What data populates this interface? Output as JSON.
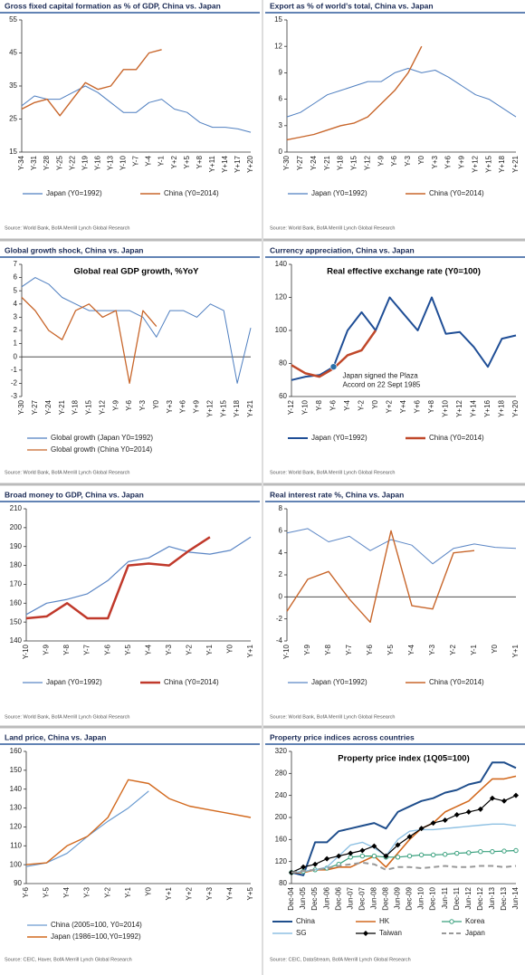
{
  "chart_data": [
    {
      "type": "line",
      "title": "Gross fixed capital formation as % of GDP, China vs. Japan",
      "categories": [
        "Y-34",
        "Y-31",
        "Y-28",
        "Y-25",
        "Y-22",
        "Y-19",
        "Y-16",
        "Y-13",
        "Y-10",
        "Y-7",
        "Y-4",
        "Y-1",
        "Y+2",
        "Y+5",
        "Y+8",
        "Y+11",
        "Y+14",
        "Y+17",
        "Y+20"
      ],
      "series": [
        {
          "name": "Japan (Y0=1992)",
          "color": "#4f7fc0",
          "width": 1,
          "values": [
            29,
            32,
            31,
            31,
            33,
            35,
            33,
            30,
            27,
            27,
            30,
            31,
            28,
            27,
            24,
            22.5,
            22.5,
            22,
            21
          ]
        },
        {
          "name": "China (Y0=2014)",
          "color": "#c8662b",
          "width": 1.4,
          "values": [
            28,
            30,
            31,
            26,
            31,
            36,
            34,
            35,
            40,
            40,
            45,
            46,
            null,
            null,
            null,
            null,
            null,
            null,
            null
          ]
        }
      ],
      "ylim": [
        15,
        55
      ],
      "yticks": [
        15,
        25,
        35,
        45,
        55
      ],
      "legend": "bottom",
      "legend_columns": 2,
      "source": "Source: World Bank, BofA Merrill Lynch Global Research"
    },
    {
      "type": "line",
      "title": "Export as % of world's total, China vs. Japan",
      "categories": [
        "Y-30",
        "Y-27",
        "Y-24",
        "Y-21",
        "Y-18",
        "Y-15",
        "Y-12",
        "Y-9",
        "Y-6",
        "Y-3",
        "Y0",
        "Y+3",
        "Y+6",
        "Y+9",
        "Y+12",
        "Y+15",
        "Y+18",
        "Y+21"
      ],
      "series": [
        {
          "name": "Japan (Y0=1992)",
          "color": "#4f7fc0",
          "width": 1,
          "values": [
            4,
            4.5,
            5.5,
            6.5,
            7,
            7.5,
            8,
            8,
            9,
            9.5,
            9,
            9.3,
            8.5,
            7.5,
            6.5,
            6,
            5,
            4
          ]
        },
        {
          "name": "China (Y0=2014)",
          "color": "#c8662b",
          "width": 1.4,
          "values": [
            1.4,
            1.7,
            2,
            2.5,
            3,
            3.3,
            4,
            5.5,
            7,
            9,
            12,
            null,
            null,
            null,
            null,
            null,
            null,
            null
          ]
        }
      ],
      "ylim": [
        0,
        15
      ],
      "yticks": [
        0,
        3,
        6,
        9,
        12,
        15
      ],
      "legend": "bottom",
      "legend_columns": 2,
      "source": "Source: World Bank, BofA Merrill Lynch Global Research"
    },
    {
      "type": "line",
      "title": "Global growth shock, China vs. Japan",
      "inner_title": "Global real GDP growth, %YoY",
      "categories": [
        "Y-30",
        "Y-27",
        "Y-24",
        "Y-21",
        "Y-18",
        "Y-15",
        "Y-12",
        "Y-9",
        "Y-6",
        "Y-3",
        "Y0",
        "Y+3",
        "Y+6",
        "Y+9",
        "Y+12",
        "Y+15",
        "Y+18",
        "Y+21"
      ],
      "series": [
        {
          "name": "Global growth (Japan Y0=1992)",
          "color": "#4f7fc0",
          "width": 1,
          "values": [
            5.3,
            6,
            5.5,
            4.5,
            4,
            3.5,
            3.5,
            3.5,
            3.5,
            3,
            1.5,
            3.5,
            3.5,
            3,
            4,
            3.5,
            -2,
            2.2
          ]
        },
        {
          "name": "Global growth (China Y0=2014)",
          "color": "#c8662b",
          "width": 1.3,
          "values": [
            4.5,
            3.5,
            2,
            1.3,
            3.5,
            4,
            3,
            3.5,
            -2,
            3.5,
            2.3,
            null,
            null,
            null,
            null,
            null,
            null,
            null
          ]
        }
      ],
      "ylim": [
        -3,
        7
      ],
      "yticks": [
        -3,
        -2,
        -1,
        0,
        1,
        2,
        3,
        4,
        5,
        6,
        7
      ],
      "legend": "bottom",
      "legend_columns": 1,
      "source": "Source: World Bank, BofA Merrill Lynch Global Research"
    },
    {
      "type": "line",
      "title": "Currency appreciation, China vs. Japan",
      "inner_title": "Real effective exchange rate (Y0=100)",
      "categories": [
        "Y-12",
        "Y-10",
        "Y-8",
        "Y-6",
        "Y-4",
        "Y-2",
        "Y0",
        "Y+2",
        "Y+4",
        "Y+6",
        "Y+8",
        "Y+10",
        "Y+12",
        "Y+14",
        "Y+16",
        "Y+18",
        "Y+20"
      ],
      "series": [
        {
          "name": "Japan (Y0=1992)",
          "color": "#1f4e96",
          "width": 2,
          "values": [
            70,
            72,
            73,
            78,
            100,
            111,
            100,
            120,
            110,
            100,
            120,
            98,
            99,
            90,
            78,
            95,
            97
          ]
        },
        {
          "name": "China (Y0=2014)",
          "color": "#c0482a",
          "width": 2.5,
          "values": [
            79,
            74,
            72,
            77,
            85,
            88,
            100,
            null,
            null,
            null,
            null,
            null,
            null,
            null,
            null,
            null,
            null
          ]
        }
      ],
      "annotation": [
        "Japan signed the Plaza",
        "Accord on 22 Sept 1985"
      ],
      "ylim": [
        60,
        140
      ],
      "yticks": [
        60,
        80,
        100,
        120,
        140
      ],
      "legend": "bottom",
      "legend_columns": 2,
      "source": "Source: World Bank, BofA Merrill Lynch Global Research"
    },
    {
      "type": "line",
      "title": "Broad money to GDP, China vs. Japan",
      "categories": [
        "Y-10",
        "Y-9",
        "Y-8",
        "Y-7",
        "Y-6",
        "Y-5",
        "Y-4",
        "Y-3",
        "Y-2",
        "Y-1",
        "Y0",
        "Y+1"
      ],
      "series": [
        {
          "name": "Japan (Y0=1992)",
          "color": "#5b86c5",
          "width": 1.2,
          "values": [
            154,
            160,
            162,
            165,
            172,
            182,
            184,
            190,
            187,
            186,
            188,
            195
          ]
        },
        {
          "name": "China (Y0=2014)",
          "color": "#c0392b",
          "width": 2.5,
          "values": [
            152,
            153,
            160,
            152,
            152,
            180,
            181,
            180,
            188,
            195,
            null,
            null
          ]
        }
      ],
      "ylim": [
        140,
        210
      ],
      "yticks": [
        140,
        150,
        160,
        170,
        180,
        190,
        200,
        210
      ],
      "legend": "bottom",
      "legend_columns": 2,
      "source": "Source: World Bank, BofA Merrill Lynch Global Research"
    },
    {
      "type": "line",
      "title": "Real interest rate %, China vs. Japan",
      "categories": [
        "Y-10",
        "Y-9",
        "Y-8",
        "Y-7",
        "Y-6",
        "Y-5",
        "Y-4",
        "Y-3",
        "Y-2",
        "Y-1",
        "Y0",
        "Y+1"
      ],
      "series": [
        {
          "name": "Japan (Y0=1992)",
          "color": "#5b86c5",
          "width": 1,
          "values": [
            5.8,
            6.2,
            5,
            5.5,
            4.2,
            5.2,
            4.7,
            3,
            4.4,
            4.8,
            4.5,
            4.4
          ]
        },
        {
          "name": "China (Y0=2014)",
          "color": "#c8662b",
          "width": 1.4,
          "values": [
            -1.3,
            1.6,
            2.3,
            -0.2,
            -2.3,
            6,
            -0.8,
            -1.1,
            4,
            4.2,
            null,
            null
          ]
        }
      ],
      "ylim": [
        -4,
        8
      ],
      "yticks": [
        -4,
        -2,
        0,
        2,
        4,
        6,
        8
      ],
      "legend": "bottom",
      "legend_columns": 2,
      "source": "Source: World Bank, BofA Merrill Lynch Global Research"
    },
    {
      "type": "line",
      "title": "Land price, China vs. Japan",
      "categories": [
        "Y-6",
        "Y-5",
        "Y-4",
        "Y-3",
        "Y-2",
        "Y-1",
        "Y0",
        "Y+1",
        "Y+2",
        "Y+3",
        "Y+4",
        "Y+5"
      ],
      "series": [
        {
          "name": "China (2005=100, Y0=2014)",
          "color": "#6a9bd1",
          "width": 1.2,
          "values": [
            99,
            101,
            106,
            115,
            123,
            130,
            139,
            null,
            null,
            null,
            null,
            null
          ]
        },
        {
          "name": "Japan (1986=100,Y0=1992)",
          "color": "#d2691e",
          "width": 1.4,
          "values": [
            100,
            101,
            110,
            115,
            125,
            145,
            143,
            135,
            131,
            129,
            127,
            125
          ]
        }
      ],
      "ylim": [
        90,
        160
      ],
      "yticks": [
        90,
        100,
        110,
        120,
        130,
        140,
        150,
        160
      ],
      "legend": "bottom",
      "legend_columns": 1,
      "source": "Source: CEIC, Haver, BofA Merrill Lynch Global Research"
    },
    {
      "type": "line",
      "title": "Property price indices across countries",
      "inner_title": "Property price index (1Q05=100)",
      "categories": [
        "Dec-04",
        "Jun-05",
        "Dec-05",
        "Jun-06",
        "Dec-06",
        "Jun-07",
        "Dec-07",
        "Jun-08",
        "Dec-08",
        "Jun-09",
        "Dec-09",
        "Jun-10",
        "Dec-10",
        "Jun-11",
        "Dec-11",
        "Jun-12",
        "Dec-12",
        "Jun-13",
        "Dec-13",
        "Jun-14"
      ],
      "series": [
        {
          "name": "China",
          "color": "#1f4e8c",
          "width": 2,
          "values": [
            100,
            95,
            155,
            155,
            175,
            180,
            185,
            190,
            180,
            210,
            220,
            230,
            235,
            245,
            250,
            260,
            265,
            300,
            300,
            290
          ]
        },
        {
          "name": "HK",
          "color": "#d2691e",
          "width": 1.6,
          "values": [
            100,
            100,
            105,
            105,
            110,
            110,
            120,
            130,
            110,
            135,
            160,
            180,
            190,
            210,
            220,
            230,
            250,
            270,
            270,
            275
          ]
        },
        {
          "name": "Korea",
          "color": "#3aa17e",
          "width": 1.2,
          "marker": "circle",
          "values": [
            100,
            102,
            105,
            108,
            115,
            128,
            130,
            130,
            128,
            128,
            130,
            132,
            132,
            133,
            135,
            136,
            138,
            138,
            139,
            140
          ]
        },
        {
          "name": "SG",
          "color": "#8fc1e3",
          "width": 1.4,
          "values": [
            100,
            102,
            105,
            110,
            130,
            150,
            155,
            145,
            130,
            160,
            175,
            178,
            178,
            180,
            182,
            184,
            186,
            188,
            188,
            185
          ]
        },
        {
          "name": "Taiwan",
          "color": "#000000",
          "width": 1.2,
          "marker": "diamond",
          "values": [
            100,
            110,
            115,
            125,
            130,
            135,
            140,
            148,
            130,
            150,
            165,
            180,
            190,
            195,
            205,
            210,
            215,
            235,
            230,
            240
          ]
        },
        {
          "name": "Japan",
          "color": "#999999",
          "width": 2,
          "dash": true,
          "values": [
            100,
            103,
            105,
            108,
            112,
            115,
            118,
            115,
            105,
            110,
            110,
            108,
            110,
            112,
            110,
            110,
            112,
            112,
            110,
            112
          ]
        }
      ],
      "ylim": [
        80,
        320
      ],
      "yticks": [
        80,
        120,
        160,
        200,
        240,
        280,
        320
      ],
      "legend": "bottom",
      "legend_columns": 3,
      "source": "Source: CEIC, DataStream, BofA Merrill Lynch Global Research"
    }
  ]
}
